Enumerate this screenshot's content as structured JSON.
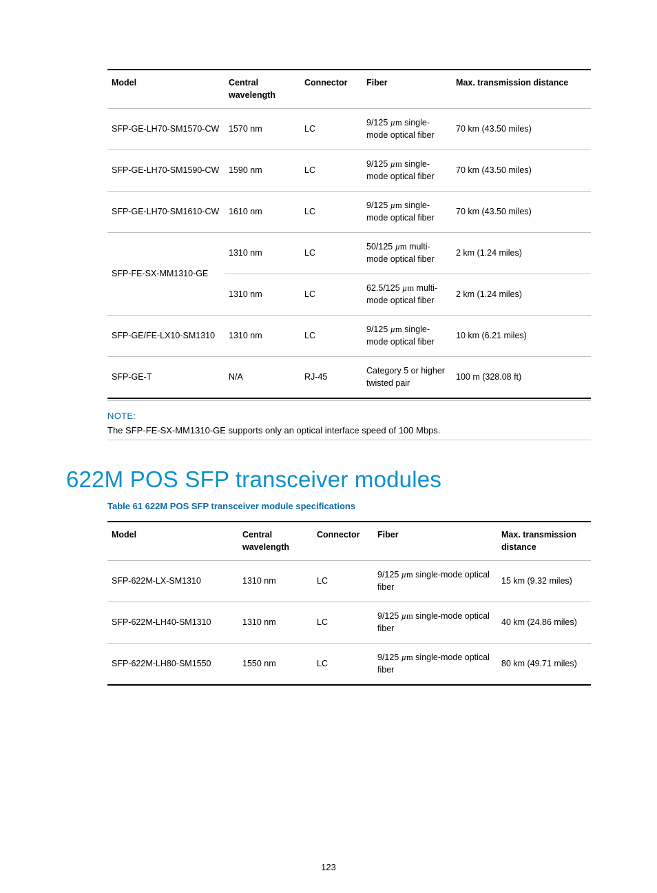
{
  "table1": {
    "columns": [
      "Model",
      "Central wavelength",
      "Connector",
      "Fiber",
      "Max. transmission distance"
    ],
    "rows": [
      {
        "model": "SFP-GE-LH70-SM1570-CW",
        "wavelength": "1570 nm",
        "connector": "LC",
        "fiber": "9/125 µm single-mode optical fiber",
        "dist": "70 km (43.50 miles)",
        "rowspan": 1
      },
      {
        "model": "SFP-GE-LH70-SM1590-CW",
        "wavelength": "1590 nm",
        "connector": "LC",
        "fiber": "9/125 µm single-mode optical fiber",
        "dist": "70 km (43.50 miles)",
        "rowspan": 1
      },
      {
        "model": "SFP-GE-LH70-SM1610-CW",
        "wavelength": "1610 nm",
        "connector": "LC",
        "fiber": "9/125 µm single-mode optical fiber",
        "dist": "70 km (43.50 miles)",
        "rowspan": 1
      },
      {
        "model": "SFP-FE-SX-MM1310-GE",
        "wavelength": "1310 nm",
        "connector": "LC",
        "fiber": "50/125 µm multi-mode optical fiber",
        "dist": "2 km (1.24 miles)",
        "rowspan": 2
      },
      {
        "model": "",
        "wavelength": "1310 nm",
        "connector": "LC",
        "fiber": "62.5/125 µm multi-mode optical fiber",
        "dist": "2 km (1.24 miles)",
        "rowspan": 0
      },
      {
        "model": "SFP-GE/FE-LX10-SM1310",
        "wavelength": "1310 nm",
        "connector": "LC",
        "fiber": "9/125 µm single-mode optical fiber",
        "dist": "10 km (6.21 miles)",
        "rowspan": 1
      },
      {
        "model": "SFP-GE-T",
        "wavelength": "N/A",
        "connector": "RJ-45",
        "fiber": "Category 5 or higher twisted pair",
        "dist": "100 m (328.08 ft)",
        "rowspan": 1
      }
    ]
  },
  "note": {
    "label": "NOTE:",
    "text": "The SFP-FE-SX-MM1310-GE supports only an optical interface speed of 100 Mbps."
  },
  "section_heading": "622M POS SFP transceiver modules",
  "table2": {
    "caption": "Table 61 622M POS SFP transceiver module specifications",
    "columns": [
      "Model",
      "Central wavelength",
      "Connector",
      "Fiber",
      "Max. transmission distance"
    ],
    "rows": [
      {
        "model": "SFP-622M-LX-SM1310",
        "wavelength": "1310 nm",
        "connector": "LC",
        "fiber": "9/125 µm single-mode optical fiber",
        "dist": "15 km (9.32 miles)"
      },
      {
        "model": "SFP-622M-LH40-SM1310",
        "wavelength": "1310 nm",
        "connector": "LC",
        "fiber": "9/125 µm single-mode optical fiber",
        "dist": "40 km (24.86 miles)"
      },
      {
        "model": "SFP-622M-LH80-SM1550",
        "wavelength": "1550 nm",
        "connector": "LC",
        "fiber": "9/125 µm single-mode optical fiber",
        "dist": "80 km (49.71 miles)"
      }
    ]
  },
  "page_number": "123",
  "colors": {
    "accent_blue": "#0b6aa6",
    "heading_blue": "#0b8fcf",
    "rule_gray": "#bfbfbf",
    "black": "#000000"
  }
}
